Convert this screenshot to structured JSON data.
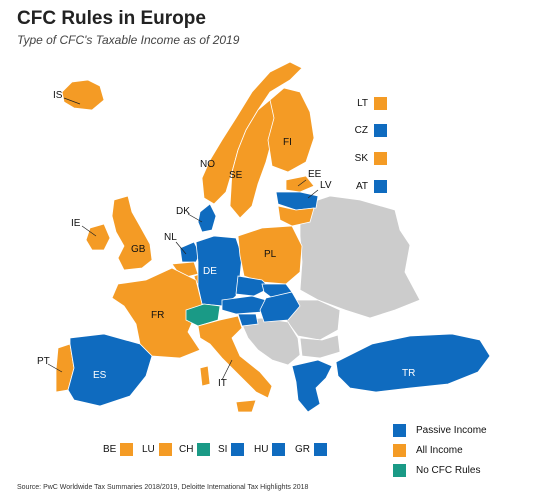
{
  "title": "CFC Rules in Europe",
  "subtitle": "Type of CFC's Taxable Income as of 2019",
  "colors": {
    "passive": "#0f6bbf",
    "all": "#f49b25",
    "none": "#1a9a86",
    "nodata": "#cccccc"
  },
  "map_labels": {
    "IS": "IS",
    "NO": "NO",
    "SE": "SE",
    "FI": "FI",
    "EE": "EE",
    "LV": "LV",
    "DK": "DK",
    "IE": "IE",
    "GB": "GB",
    "NL": "NL",
    "DE": "DE",
    "PL": "PL",
    "FR": "FR",
    "PT": "PT",
    "ES": "ES",
    "IT": "IT",
    "TR": "TR"
  },
  "side_legend": [
    {
      "label": "LT",
      "category": "all"
    },
    {
      "label": "CZ",
      "category": "passive"
    },
    {
      "label": "SK",
      "category": "all"
    },
    {
      "label": "AT",
      "category": "passive"
    }
  ],
  "bottom_legend": [
    {
      "label": "BE",
      "category": "all"
    },
    {
      "label": "LU",
      "category": "all"
    },
    {
      "label": "CH",
      "category": "none"
    },
    {
      "label": "SI",
      "category": "passive"
    },
    {
      "label": "HU",
      "category": "passive"
    },
    {
      "label": "GR",
      "category": "passive"
    }
  ],
  "key": [
    {
      "label": "Passive Income",
      "category": "passive"
    },
    {
      "label": "All Income",
      "category": "all"
    },
    {
      "label": "No CFC Rules",
      "category": "none"
    }
  ],
  "source": "Source: PwC Worldwide Tax Summaries 2018/2019, Deloitte International Tax Highlights 2018"
}
